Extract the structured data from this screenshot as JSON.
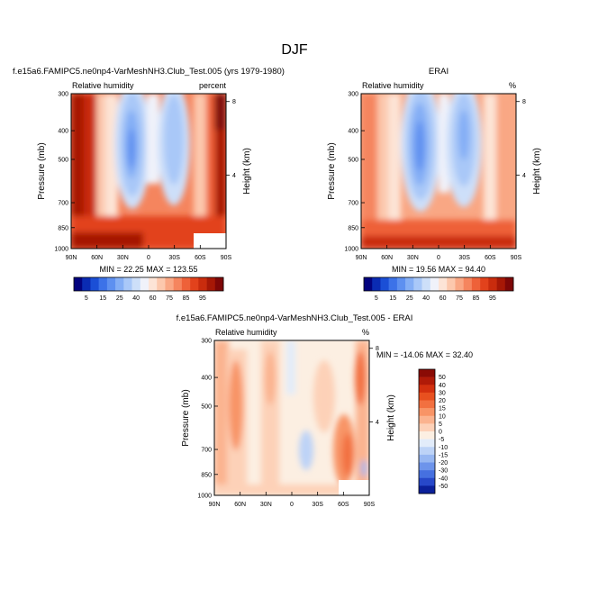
{
  "title": "DJF",
  "chart_data": [
    {
      "type": "heatmap",
      "id": "model",
      "title": "f.e15a6.FAMIPC5.ne0np4-VarMeshNH3.Club_Test.005 (yrs 1979-1980)",
      "subtitle_left": "Relative humidity",
      "subtitle_right": "percent",
      "xlabel": "",
      "ylabel": "Pressure (mb)",
      "y2label": "Height (km)",
      "x_ticks": [
        "90N",
        "60N",
        "30N",
        "0",
        "30S",
        "60S",
        "90S"
      ],
      "y_ticks": [
        300,
        400,
        500,
        700,
        850,
        1000
      ],
      "y2_ticks": [
        8,
        4
      ],
      "ylim": [
        1000,
        300
      ],
      "ylog": true,
      "stats": "MIN = 22.25  MAX = 123.55",
      "min": 22.25,
      "max": 123.55,
      "colorbar": {
        "orientation": "horizontal",
        "labels": [
          "5",
          "15",
          "25",
          "40",
          "60",
          "75",
          "85",
          "95"
        ],
        "colors": [
          "#03037f",
          "#0a2bb3",
          "#1b4fd6",
          "#3c72e8",
          "#5e90f0",
          "#84aef5",
          "#a9c8f8",
          "#cddff9",
          "#f0f2fa",
          "#fde4d6",
          "#fcc8ad",
          "#f9a784",
          "#f5855e",
          "#ee6139",
          "#e2421c",
          "#c92c0d",
          "#a61806",
          "#7e0707"
        ]
      }
    },
    {
      "type": "heatmap",
      "id": "obs",
      "title": "ERAI",
      "subtitle_left": "Relative humidity",
      "subtitle_right": "%",
      "xlabel": "",
      "ylabel": "Pressure (mb)",
      "y2label": "Height (km)",
      "x_ticks": [
        "90N",
        "60N",
        "30N",
        "0",
        "30S",
        "60S",
        "90S"
      ],
      "y_ticks": [
        300,
        400,
        500,
        700,
        850,
        1000
      ],
      "y2_ticks": [
        8,
        4
      ],
      "ylim": [
        1000,
        300
      ],
      "ylog": true,
      "stats": "MIN = 19.56  MAX = 94.40",
      "min": 19.56,
      "max": 94.4,
      "colorbar": {
        "orientation": "horizontal",
        "labels": [
          "5",
          "15",
          "25",
          "40",
          "60",
          "75",
          "85",
          "95"
        ],
        "colors": [
          "#03037f",
          "#0a2bb3",
          "#1b4fd6",
          "#3c72e8",
          "#5e90f0",
          "#84aef5",
          "#a9c8f8",
          "#cddff9",
          "#f0f2fa",
          "#fde4d6",
          "#fcc8ad",
          "#f9a784",
          "#f5855e",
          "#ee6139",
          "#e2421c",
          "#c92c0d",
          "#a61806",
          "#7e0707"
        ]
      }
    },
    {
      "type": "heatmap",
      "id": "diff",
      "title": "f.e15a6.FAMIPC5.ne0np4-VarMeshNH3.Club_Test.005 - ERAI",
      "subtitle_left": "Relative humidity",
      "subtitle_right": "%",
      "xlabel": "",
      "ylabel": "Pressure (mb)",
      "y2label": "Height (km)",
      "x_ticks": [
        "90N",
        "60N",
        "30N",
        "0",
        "30S",
        "60S",
        "90S"
      ],
      "y_ticks": [
        300,
        400,
        500,
        700,
        850,
        1000
      ],
      "y2_ticks": [
        8,
        4
      ],
      "ylim": [
        1000,
        300
      ],
      "ylog": true,
      "stats": "MIN = -14.06  MAX =  32.40",
      "min": -14.06,
      "max": 32.4,
      "colorbar": {
        "orientation": "vertical",
        "labels": [
          "50",
          "40",
          "30",
          "20",
          "15",
          "10",
          "5",
          "0",
          "-5",
          "-10",
          "-15",
          "-20",
          "-30",
          "-40",
          "-50"
        ],
        "colors": [
          "#8a0b05",
          "#b01a08",
          "#d3300f",
          "#e8501f",
          "#f27040",
          "#f89466",
          "#fbb38f",
          "#fdd1b8",
          "#fcefe2",
          "#e2ecfa",
          "#bdd3f7",
          "#97b7f2",
          "#6d94eb",
          "#4670e0",
          "#2748c9",
          "#0b209a"
        ]
      }
    }
  ]
}
